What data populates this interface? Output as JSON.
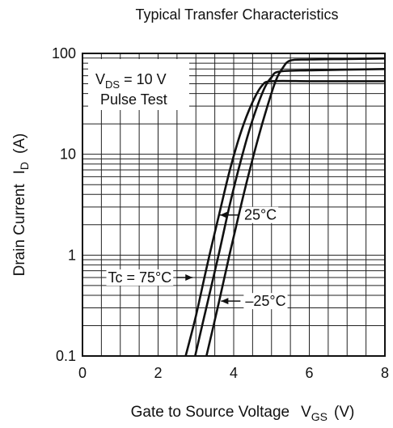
{
  "chart_data": {
    "type": "line",
    "title": "Typical Transfer Characteristics",
    "xlabel": {
      "main": "Gate to Source Voltage",
      "sym": "V",
      "sub": "GS",
      "unit": "(V)"
    },
    "ylabel": {
      "main": "Drain Current",
      "sym": "I",
      "sub": "D",
      "unit": "(A)"
    },
    "xlim": [
      0,
      8
    ],
    "ylim": [
      0.1,
      100
    ],
    "yscale": "log",
    "xticks": [
      0,
      2,
      4,
      6,
      8
    ],
    "xtick_labels": [
      "0",
      "2",
      "4",
      "6",
      "8"
    ],
    "yticks": [
      0.1,
      1,
      10,
      100
    ],
    "ytick_labels": [
      "0.1",
      "1",
      "10",
      "100"
    ],
    "grid": true,
    "conditions": {
      "vds_prefix": "V",
      "vds_sub": "DS",
      "vds_value": " = 10 V",
      "pulse": "Pulse Test"
    },
    "series": [
      {
        "name": "Tc = 75°C",
        "x": [
          2.73,
          3.0,
          3.3,
          3.6,
          3.9,
          4.2,
          4.5,
          4.75,
          5.0,
          6.0,
          7.0,
          8.0
        ],
        "y": [
          0.1,
          0.25,
          0.8,
          2.4,
          7.0,
          17.0,
          33.0,
          48.0,
          53.0,
          53.0,
          53.0,
          53.0
        ]
      },
      {
        "name": "25°C",
        "x": [
          2.98,
          3.3,
          3.6,
          3.9,
          4.2,
          4.5,
          4.8,
          5.0,
          5.2,
          6.0,
          7.0,
          8.0
        ],
        "y": [
          0.1,
          0.33,
          1.0,
          3.2,
          9.0,
          22.0,
          44.0,
          58.0,
          66.0,
          68.0,
          69.0,
          70.0
        ]
      },
      {
        "name": "–25°C",
        "x": [
          3.28,
          3.6,
          3.9,
          4.2,
          4.5,
          4.8,
          5.1,
          5.3,
          5.5,
          6.0,
          7.0,
          8.0
        ],
        "y": [
          0.1,
          0.33,
          1.05,
          3.2,
          9.0,
          23.0,
          52.0,
          72.0,
          85.0,
          87.0,
          88.0,
          89.0
        ]
      }
    ],
    "annotations": [
      {
        "series": 0,
        "label": "Tc = 75°C",
        "x": 3.0,
        "y": 0.6,
        "side": "left"
      },
      {
        "series": 1,
        "label": "25°C",
        "x": 3.55,
        "y": 2.5,
        "side": "right"
      },
      {
        "series": 2,
        "label": "–25°C",
        "x": 3.58,
        "y": 0.35,
        "side": "right"
      }
    ]
  }
}
